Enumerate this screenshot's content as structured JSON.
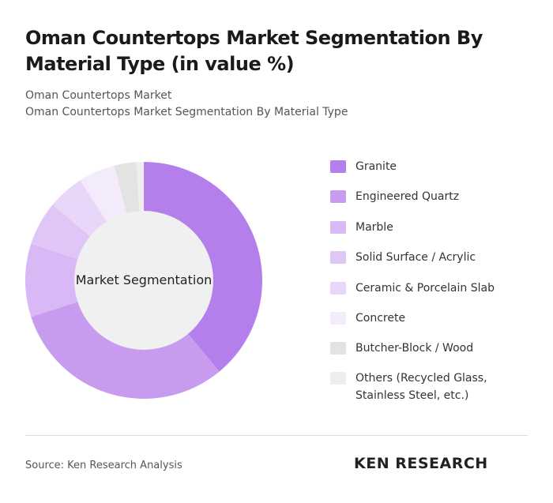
{
  "chart_data": {
    "type": "donut",
    "title": "Oman Countertops Market Segmentation By Material Type (in value %)",
    "subtitles": [
      "Oman Countertops Market",
      "Oman Countertops Market Segmentation By Material Type"
    ],
    "center_label": "Market Segmentation",
    "categories": [
      "Granite",
      "Engineered Quartz",
      "Marble",
      "Solid Surface / Acrylic",
      "Ceramic & Porcelain Slab",
      "Concrete",
      "Butcher-Block / Wood",
      "Others (Recycled Glass, Stainless Steel, etc.)"
    ],
    "values": [
      39,
      31,
      10,
      6,
      5,
      5,
      3,
      1
    ],
    "colors": [
      "#b47fea",
      "#c79cef",
      "#d8b8f5",
      "#dfc6f7",
      "#e9d7fa",
      "#f3ebfc",
      "#e3e3e3",
      "#eeeeee"
    ],
    "source": "Source: Ken Research Analysis",
    "logo": "KEN RESEARCH"
  }
}
